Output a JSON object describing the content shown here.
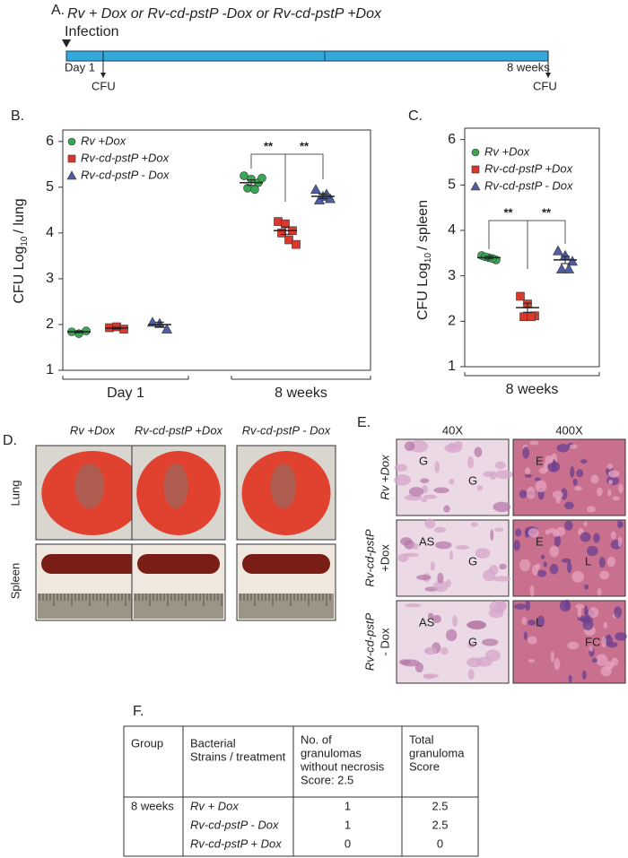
{
  "panel_a": {
    "label": "A.",
    "title": "Rv + Dox or Rv-cd-pstP -Dox or Rv-cd-pstP +Dox",
    "start": "Infection",
    "day": "Day 1",
    "end": "8 weeks",
    "readout_start": "CFU",
    "readout_end": "CFU"
  },
  "chart_data": [
    {
      "type": "dot",
      "panel": "B.",
      "ylabel": [
        "CFU Log",
        "10",
        "/ lung"
      ],
      "categories": [
        "Day 1",
        "8 weeks"
      ],
      "ylim": [
        1,
        6.25
      ],
      "yticks": [
        1,
        2,
        3,
        4,
        5,
        6
      ],
      "annotations": [
        "**",
        "**"
      ],
      "series": [
        {
          "name": "Rv +Dox",
          "color": "#3aa655",
          "marker": "circle",
          "values": [
            [
              1.84,
              1.8,
              1.86
            ],
            [
              5.25,
              5.18,
              5.1,
              4.98,
              4.95,
              5.2
            ]
          ],
          "means": [
            1.84,
            5.1
          ],
          "sem": [
            0.02,
            0.06
          ]
        },
        {
          "name": "Rv-cd-pstP +Dox",
          "color": "#d9382c",
          "marker": "square",
          "values": [
            [
              1.93,
              1.95,
              1.9
            ],
            [
              4.25,
              4.2,
              4.05,
              4.0,
              3.85,
              3.75
            ]
          ],
          "means": [
            1.92,
            4.05
          ],
          "sem": [
            0.02,
            0.08
          ]
        },
        {
          "name": "Rv-cd-pstP - Dox",
          "color": "#4f5da3",
          "marker": "triangle",
          "values": [
            [
              2.05,
              2.02,
              1.9
            ],
            [
              4.95,
              4.8,
              4.75,
              4.72,
              4.85
            ]
          ],
          "means": [
            2.0,
            4.8
          ],
          "sem": [
            0.05,
            0.05
          ]
        }
      ]
    },
    {
      "type": "dot",
      "panel": "C.",
      "ylabel": [
        "CFU Log",
        "10",
        "/ spleen"
      ],
      "categories": [
        "8 weeks"
      ],
      "ylim": [
        1,
        6.25
      ],
      "yticks": [
        1,
        2,
        3,
        4,
        5,
        6
      ],
      "annotations": [
        "**",
        "**"
      ],
      "series": [
        {
          "name": "Rv +Dox",
          "color": "#3aa655",
          "marker": "circle",
          "values": [
            [
              3.45,
              3.4,
              3.35,
              3.42,
              3.38
            ]
          ],
          "means": [
            3.4
          ],
          "sem": [
            0.03
          ]
        },
        {
          "name": "Rv-cd-pstP +Dox",
          "color": "#d9382c",
          "marker": "square",
          "values": [
            [
              2.55,
              2.38,
              2.12,
              2.1,
              2.1
            ]
          ],
          "means": [
            2.3
          ],
          "sem": [
            0.1
          ]
        },
        {
          "name": "Rv-cd-pstP - Dox",
          "color": "#4f5da3",
          "marker": "triangle",
          "values": [
            [
              3.55,
              3.45,
              3.32,
              3.15,
              3.15
            ]
          ],
          "means": [
            3.35
          ],
          "sem": [
            0.08
          ]
        }
      ]
    }
  ],
  "panel_d": {
    "label": "D.",
    "columns": [
      "Rv +Dox",
      "Rv-cd-pstP +Dox",
      "Rv-cd-pstP - Dox"
    ],
    "rows": [
      "Lung",
      "Spleen"
    ]
  },
  "panel_e": {
    "label": "E.",
    "columns": [
      "40X",
      "400X"
    ],
    "rows": [
      [
        "Rv +Dox"
      ],
      [
        "Rv-cd-pstP",
        "+Dox"
      ],
      [
        "Rv-cd-pstP",
        "- Dox"
      ]
    ],
    "image_labels": [
      [
        [
          "G",
          "G"
        ],
        [
          "E"
        ]
      ],
      [
        [
          "AS",
          "G"
        ],
        [
          "E",
          "L"
        ]
      ],
      [
        [
          "AS",
          "G"
        ],
        [
          "L",
          "FC"
        ]
      ]
    ]
  },
  "panel_f": {
    "label": "F.",
    "header": [
      [
        "Group"
      ],
      [
        "Bacterial",
        "Strains / treatment"
      ],
      [
        "No. of",
        "granulomas",
        "without necrosis",
        "Score: 2.5"
      ],
      [
        "Total",
        "granuloma",
        "Score"
      ]
    ],
    "rows": [
      [
        "8 weeks",
        "Rv + Dox",
        1,
        2.5
      ],
      [
        null,
        "Rv-cd-pstP - Dox",
        1,
        2.5
      ],
      [
        null,
        "Rv-cd-pstP + Dox",
        0,
        0
      ]
    ]
  }
}
